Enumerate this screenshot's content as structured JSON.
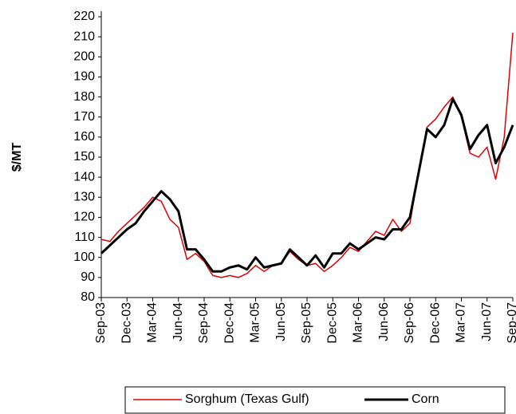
{
  "chart_data": {
    "type": "line",
    "y_label": "$/MT",
    "categories": [
      "Sep-03",
      null,
      null,
      "Dec-03",
      null,
      null,
      "Mar-04",
      null,
      null,
      "Jun-04",
      null,
      null,
      "Sep-04",
      null,
      null,
      "Dec-04",
      null,
      null,
      "Mar-05",
      null,
      null,
      "Jun-05",
      null,
      null,
      "Sep-05",
      null,
      null,
      "Dec-05",
      null,
      null,
      "Mar-06",
      null,
      null,
      "Jun-06",
      null,
      null,
      "Sep-06",
      null,
      null,
      "Dec-06",
      null,
      null,
      "Mar-07",
      null,
      null,
      "Jun-07",
      null,
      null,
      "Sep-07"
    ],
    "series": [
      {
        "name": "Sorghum (Texas Gulf)",
        "color": "#e00000",
        "width": 1.5,
        "values": [
          109,
          108,
          113,
          117,
          121,
          125,
          130,
          128,
          119,
          115,
          99,
          102,
          98,
          91,
          90,
          91,
          90,
          92,
          96,
          93,
          96,
          97,
          103,
          99,
          96,
          97,
          93,
          96,
          100,
          105,
          103,
          108,
          113,
          111,
          119,
          113,
          117,
          142,
          165,
          169,
          175,
          180,
          170,
          152,
          150,
          155,
          139,
          160,
          212
        ]
      },
      {
        "name": "Corn",
        "color": "#000000",
        "width": 3,
        "values": [
          102,
          106,
          110,
          114,
          117,
          123,
          128,
          133,
          129,
          123,
          104,
          104,
          99,
          93,
          93,
          95,
          96,
          94,
          100,
          95,
          96,
          97,
          104,
          100,
          96,
          101,
          95,
          102,
          102,
          107,
          104,
          107,
          110,
          109,
          114,
          114,
          120,
          142,
          164,
          160,
          166,
          179,
          171,
          154,
          161,
          166,
          147,
          155,
          166
        ]
      }
    ],
    "ylim": [
      80,
      220
    ],
    "yticks": [
      80,
      90,
      100,
      110,
      120,
      130,
      140,
      150,
      160,
      170,
      180,
      190,
      200,
      210,
      220
    ],
    "legend": "bottom"
  }
}
